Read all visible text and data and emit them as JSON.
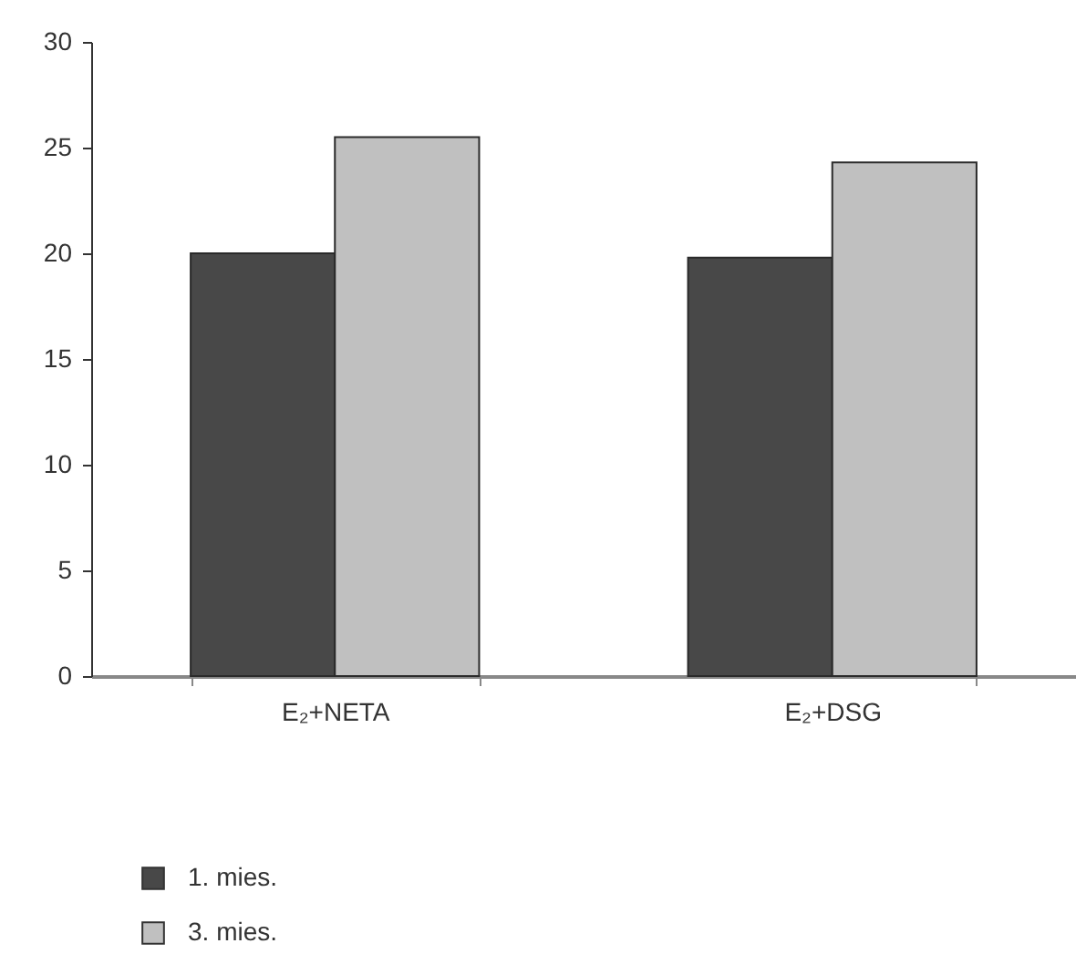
{
  "chart_data": {
    "type": "bar",
    "categories": [
      "E₂+NETA",
      "E₂+DSG"
    ],
    "series": [
      {
        "name": "1. mies.",
        "color": "#484848",
        "values": [
          20.0,
          19.8
        ]
      },
      {
        "name": "3. mies.",
        "color": "#c0c0c0",
        "values": [
          25.5,
          24.3
        ]
      }
    ],
    "ylim": [
      0,
      30
    ],
    "yticks": [
      0,
      5,
      10,
      15,
      20,
      25,
      30
    ],
    "grid": false,
    "legend": "bottom left"
  }
}
